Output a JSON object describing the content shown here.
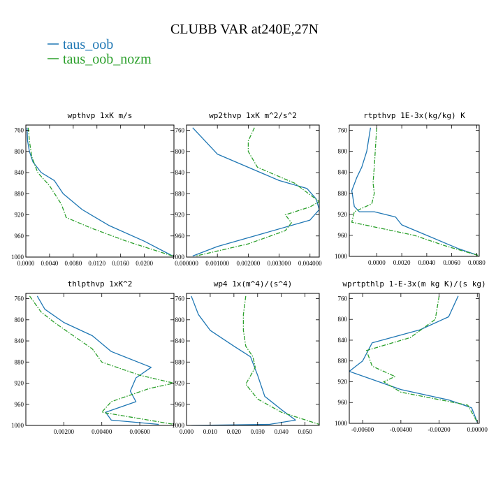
{
  "figure": {
    "title": "CLUBB VAR at240E,27N",
    "legend": [
      {
        "label": "taus_oob",
        "color": "#1f77b4",
        "dash": "solid"
      },
      {
        "label": "taus_oob_nozm",
        "color": "#2ca02c",
        "dash": "dashdot"
      }
    ]
  },
  "chart_data": [
    {
      "type": "line",
      "title": "wpthvp  1xK m/s",
      "ylim": [
        1000,
        750
      ],
      "yticks": [
        760,
        800,
        840,
        880,
        920,
        960,
        1000
      ],
      "xlim": [
        0,
        0.025
      ],
      "xticks": [
        0,
        0.004,
        0.008,
        0.012,
        0.016,
        0.02
      ],
      "xtick_labels": [
        "0.0000",
        "0.0040",
        "0.0080",
        "0.0120",
        "0.0160",
        "0.0200"
      ],
      "series": [
        {
          "name": "taus_oob",
          "color": "#1f77b4",
          "dash": "solid",
          "x": [
            0.0002,
            0.0003,
            0.0006,
            0.0012,
            0.0026,
            0.0048,
            0.0063,
            0.0095,
            0.014,
            0.02,
            0.0248
          ],
          "y": [
            755,
            780,
            800,
            820,
            840,
            855,
            880,
            910,
            940,
            970,
            998
          ]
        },
        {
          "name": "taus_oob_nozm",
          "color": "#2ca02c",
          "dash": "dashdot",
          "x": [
            0.0004,
            0.0006,
            0.001,
            0.002,
            0.004,
            0.006,
            0.0068,
            0.011,
            0.017,
            0.0248
          ],
          "y": [
            755,
            780,
            810,
            840,
            865,
            900,
            925,
            945,
            970,
            998
          ]
        }
      ]
    },
    {
      "type": "line",
      "title": "wp2thvp  1xK m^2/s^2",
      "ylim": [
        1000,
        750
      ],
      "yticks": [
        760,
        800,
        840,
        880,
        920,
        960,
        1000
      ],
      "xlim": [
        0,
        0.0043
      ],
      "xticks": [
        0,
        0.001,
        0.002,
        0.003,
        0.004
      ],
      "xtick_labels": [
        "0.000000",
        "0.001000",
        "0.002000",
        "0.003000",
        "0.004000"
      ],
      "series": [
        {
          "name": "taus_oob",
          "color": "#1f77b4",
          "dash": "solid",
          "x": [
            0.0002,
            0.0006,
            0.001,
            0.002,
            0.003,
            0.0039,
            0.0042,
            0.0043,
            0.004,
            0.0025,
            0.001,
            0.0002
          ],
          "y": [
            755,
            780,
            805,
            830,
            855,
            870,
            890,
            910,
            930,
            955,
            980,
            998
          ]
        },
        {
          "name": "taus_oob_nozm",
          "color": "#2ca02c",
          "dash": "dashdot",
          "x": [
            0.0022,
            0.002,
            0.002,
            0.0023,
            0.0035,
            0.0043,
            0.004,
            0.0032,
            0.0034,
            0.0032,
            0.002,
            0.0003
          ],
          "y": [
            755,
            780,
            800,
            830,
            860,
            895,
            905,
            920,
            935,
            950,
            975,
            998
          ]
        }
      ]
    },
    {
      "type": "line",
      "title": "rtpthvp  1E-3x(kg/kg) K",
      "ylim": [
        1000,
        750
      ],
      "yticks": [
        760,
        800,
        840,
        880,
        920,
        960,
        1000
      ],
      "xlim": [
        -0.0022,
        0.0082
      ],
      "xticks": [
        0,
        0.002,
        0.004,
        0.006,
        0.008
      ],
      "xtick_labels": [
        "0.0000",
        "0.0020",
        "0.0040",
        "0.0060",
        "0.0080"
      ],
      "series": [
        {
          "name": "taus_oob",
          "color": "#1f77b4",
          "dash": "solid",
          "x": [
            -0.0005,
            -0.0008,
            -0.0012,
            -0.0016,
            -0.002,
            -0.0018,
            -0.0014,
            -0.0002,
            0.0015,
            0.002,
            0.004,
            0.0065,
            0.0081
          ],
          "y": [
            755,
            800,
            830,
            850,
            875,
            905,
            915,
            915,
            925,
            940,
            960,
            985,
            998
          ]
        },
        {
          "name": "taus_oob_nozm",
          "color": "#2ca02c",
          "dash": "dashdot",
          "x": [
            0,
            -0.0001,
            -0.0002,
            -0.0003,
            -0.0002,
            -0.0004,
            -0.0018,
            -0.002,
            0.0,
            0.003,
            0.0055,
            0.0081
          ],
          "y": [
            755,
            790,
            830,
            860,
            880,
            900,
            915,
            935,
            945,
            960,
            980,
            998
          ]
        }
      ]
    },
    {
      "type": "line",
      "title": "thlpthvp  1xK^2",
      "ylim": [
        1000,
        750
      ],
      "yticks": [
        760,
        800,
        840,
        880,
        920,
        960,
        1000
      ],
      "xlim": [
        0,
        0.0078
      ],
      "xticks": [
        0.002,
        0.004,
        0.006
      ],
      "xtick_labels": [
        "0.00200",
        "0.00400",
        "0.00600"
      ],
      "series": [
        {
          "name": "taus_oob",
          "color": "#1f77b4",
          "dash": "solid",
          "x": [
            0.0006,
            0.001,
            0.002,
            0.0035,
            0.0045,
            0.0066,
            0.0058,
            0.0055,
            0.0058,
            0.0042,
            0.0045,
            0.007
          ],
          "y": [
            755,
            780,
            805,
            830,
            860,
            890,
            910,
            935,
            955,
            975,
            990,
            998
          ]
        },
        {
          "name": "taus_oob_nozm",
          "color": "#2ca02c",
          "dash": "dashdot",
          "x": [
            0.0002,
            0.0008,
            0.0015,
            0.0025,
            0.0035,
            0.004,
            0.006,
            0.0078,
            0.0065,
            0.0045,
            0.004,
            0.0078
          ],
          "y": [
            755,
            785,
            805,
            830,
            855,
            880,
            905,
            920,
            930,
            955,
            975,
            998
          ]
        }
      ]
    },
    {
      "type": "line",
      "title": "wp4  1x(m^4)/(s^4)",
      "ylim": [
        1000,
        750
      ],
      "yticks": [
        760,
        800,
        840,
        880,
        920,
        960,
        1000
      ],
      "xlim": [
        0,
        0.056
      ],
      "xticks": [
        0,
        0.01,
        0.02,
        0.03,
        0.04,
        0.05
      ],
      "xtick_labels": [
        "0.000",
        "0.010",
        "0.020",
        "0.030",
        "0.040",
        "0.050"
      ],
      "series": [
        {
          "name": "taus_oob",
          "color": "#1f77b4",
          "dash": "solid",
          "x": [
            0.002,
            0.005,
            0.01,
            0.02,
            0.027,
            0.03,
            0.033,
            0.04,
            0.046,
            0.035,
            0.002
          ],
          "y": [
            755,
            790,
            820,
            850,
            870,
            905,
            945,
            970,
            990,
            998,
            1000
          ]
        },
        {
          "name": "taus_oob_nozm",
          "color": "#2ca02c",
          "dash": "dashdot",
          "x": [
            0.025,
            0.024,
            0.024,
            0.025,
            0.028,
            0.029,
            0.025,
            0.03,
            0.04,
            0.056
          ],
          "y": [
            755,
            790,
            820,
            850,
            870,
            890,
            922,
            950,
            975,
            998
          ]
        }
      ]
    },
    {
      "type": "line",
      "title": "wprtpthlp  1-E-3x(m kg K)/(s kg)",
      "ylim": [
        1000,
        750
      ],
      "yticks": [
        760,
        800,
        840,
        880,
        920,
        960,
        1000
      ],
      "xlim": [
        -0.0067,
        0.0001
      ],
      "xticks": [
        -0.006,
        -0.004,
        -0.002,
        0
      ],
      "xtick_labels": [
        "-0.00600",
        "-0.00400",
        "-0.00200",
        "0.00000"
      ],
      "series": [
        {
          "name": "taus_oob",
          "color": "#1f77b4",
          "dash": "solid",
          "x": [
            -0.001,
            -0.0015,
            -0.003,
            -0.0055,
            -0.006,
            -0.0067,
            -0.004,
            -0.0015,
            -0.0003,
            0.0
          ],
          "y": [
            755,
            795,
            820,
            845,
            880,
            900,
            935,
            955,
            970,
            998
          ]
        },
        {
          "name": "taus_oob_nozm",
          "color": "#2ca02c",
          "dash": "dashdot",
          "x": [
            -0.002,
            -0.0022,
            -0.0035,
            -0.0058,
            -0.0055,
            -0.0043,
            -0.0049,
            -0.004,
            -0.0005,
            0.0
          ],
          "y": [
            755,
            800,
            835,
            860,
            890,
            910,
            920,
            940,
            965,
            998
          ]
        }
      ]
    }
  ]
}
